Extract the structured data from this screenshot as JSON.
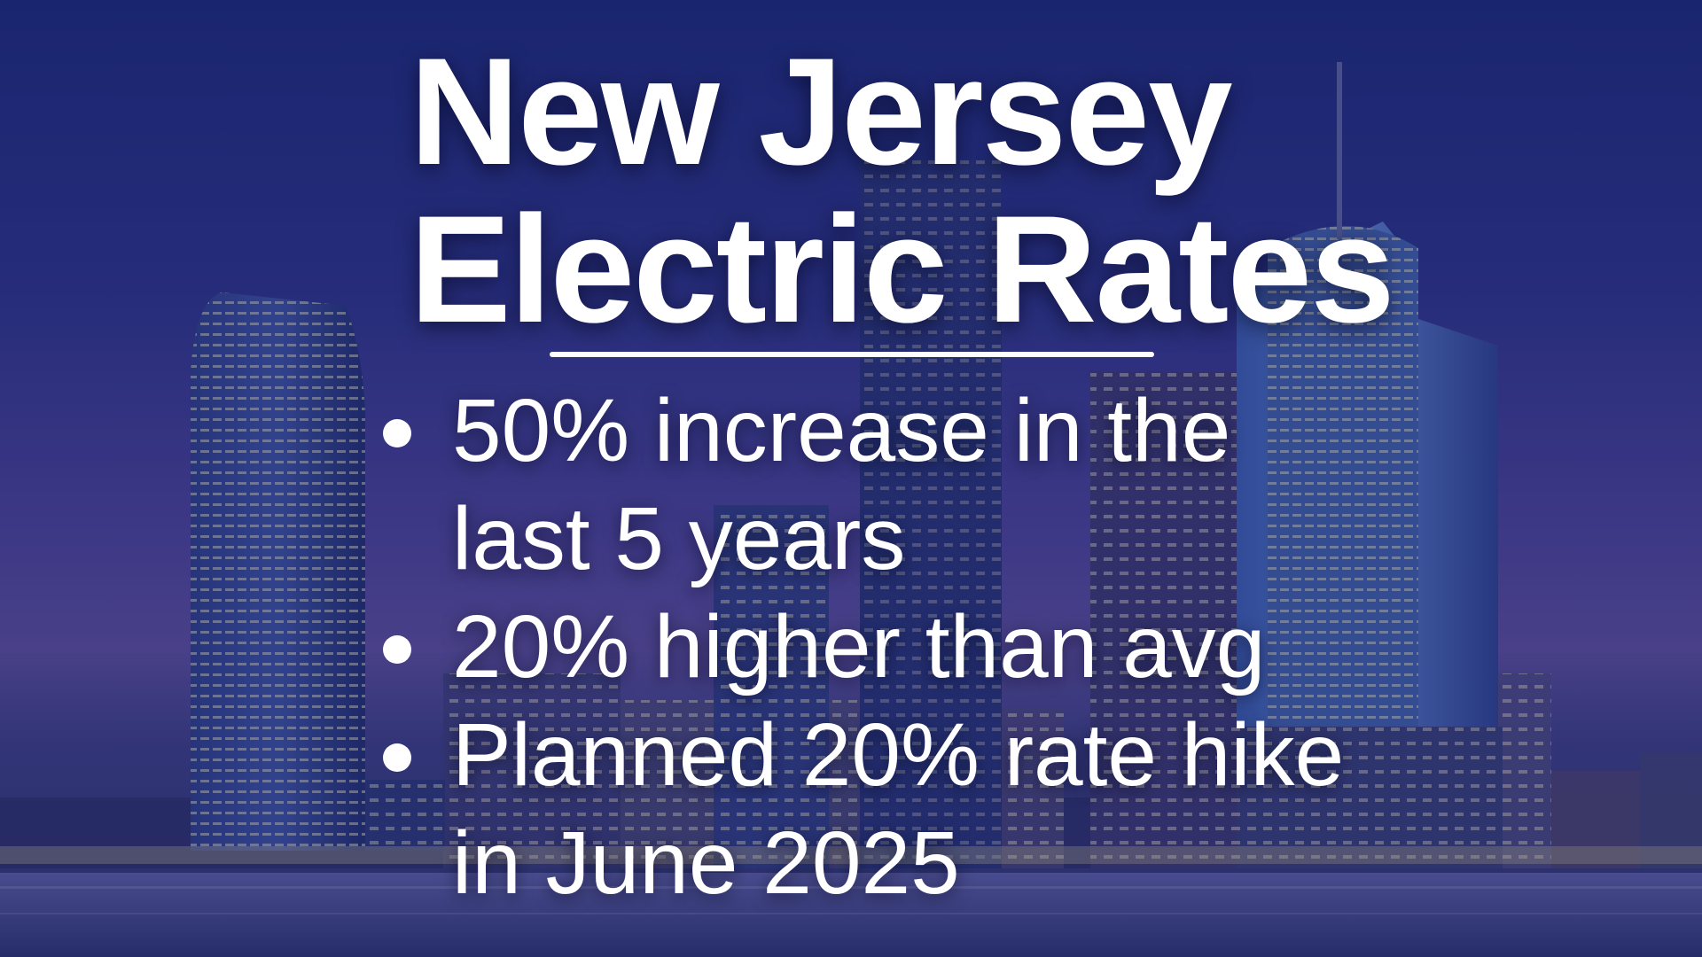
{
  "title": {
    "line1": "New Jersey",
    "line2": "Electric Rates"
  },
  "bullets": [
    {
      "line1": "50% increase in the",
      "line2": "last 5 years"
    },
    {
      "line1": "20% higher than avg",
      "line2": ""
    },
    {
      "line1": "Planned 20% rate hike",
      "line2": "in June 2025"
    }
  ],
  "colors": {
    "text": "#ffffff",
    "sky_top": "#1a2570",
    "sky_mid": "#4a3f8e",
    "water": "#2c3266"
  },
  "icons": {
    "bullet": "bullet-dot-icon"
  }
}
